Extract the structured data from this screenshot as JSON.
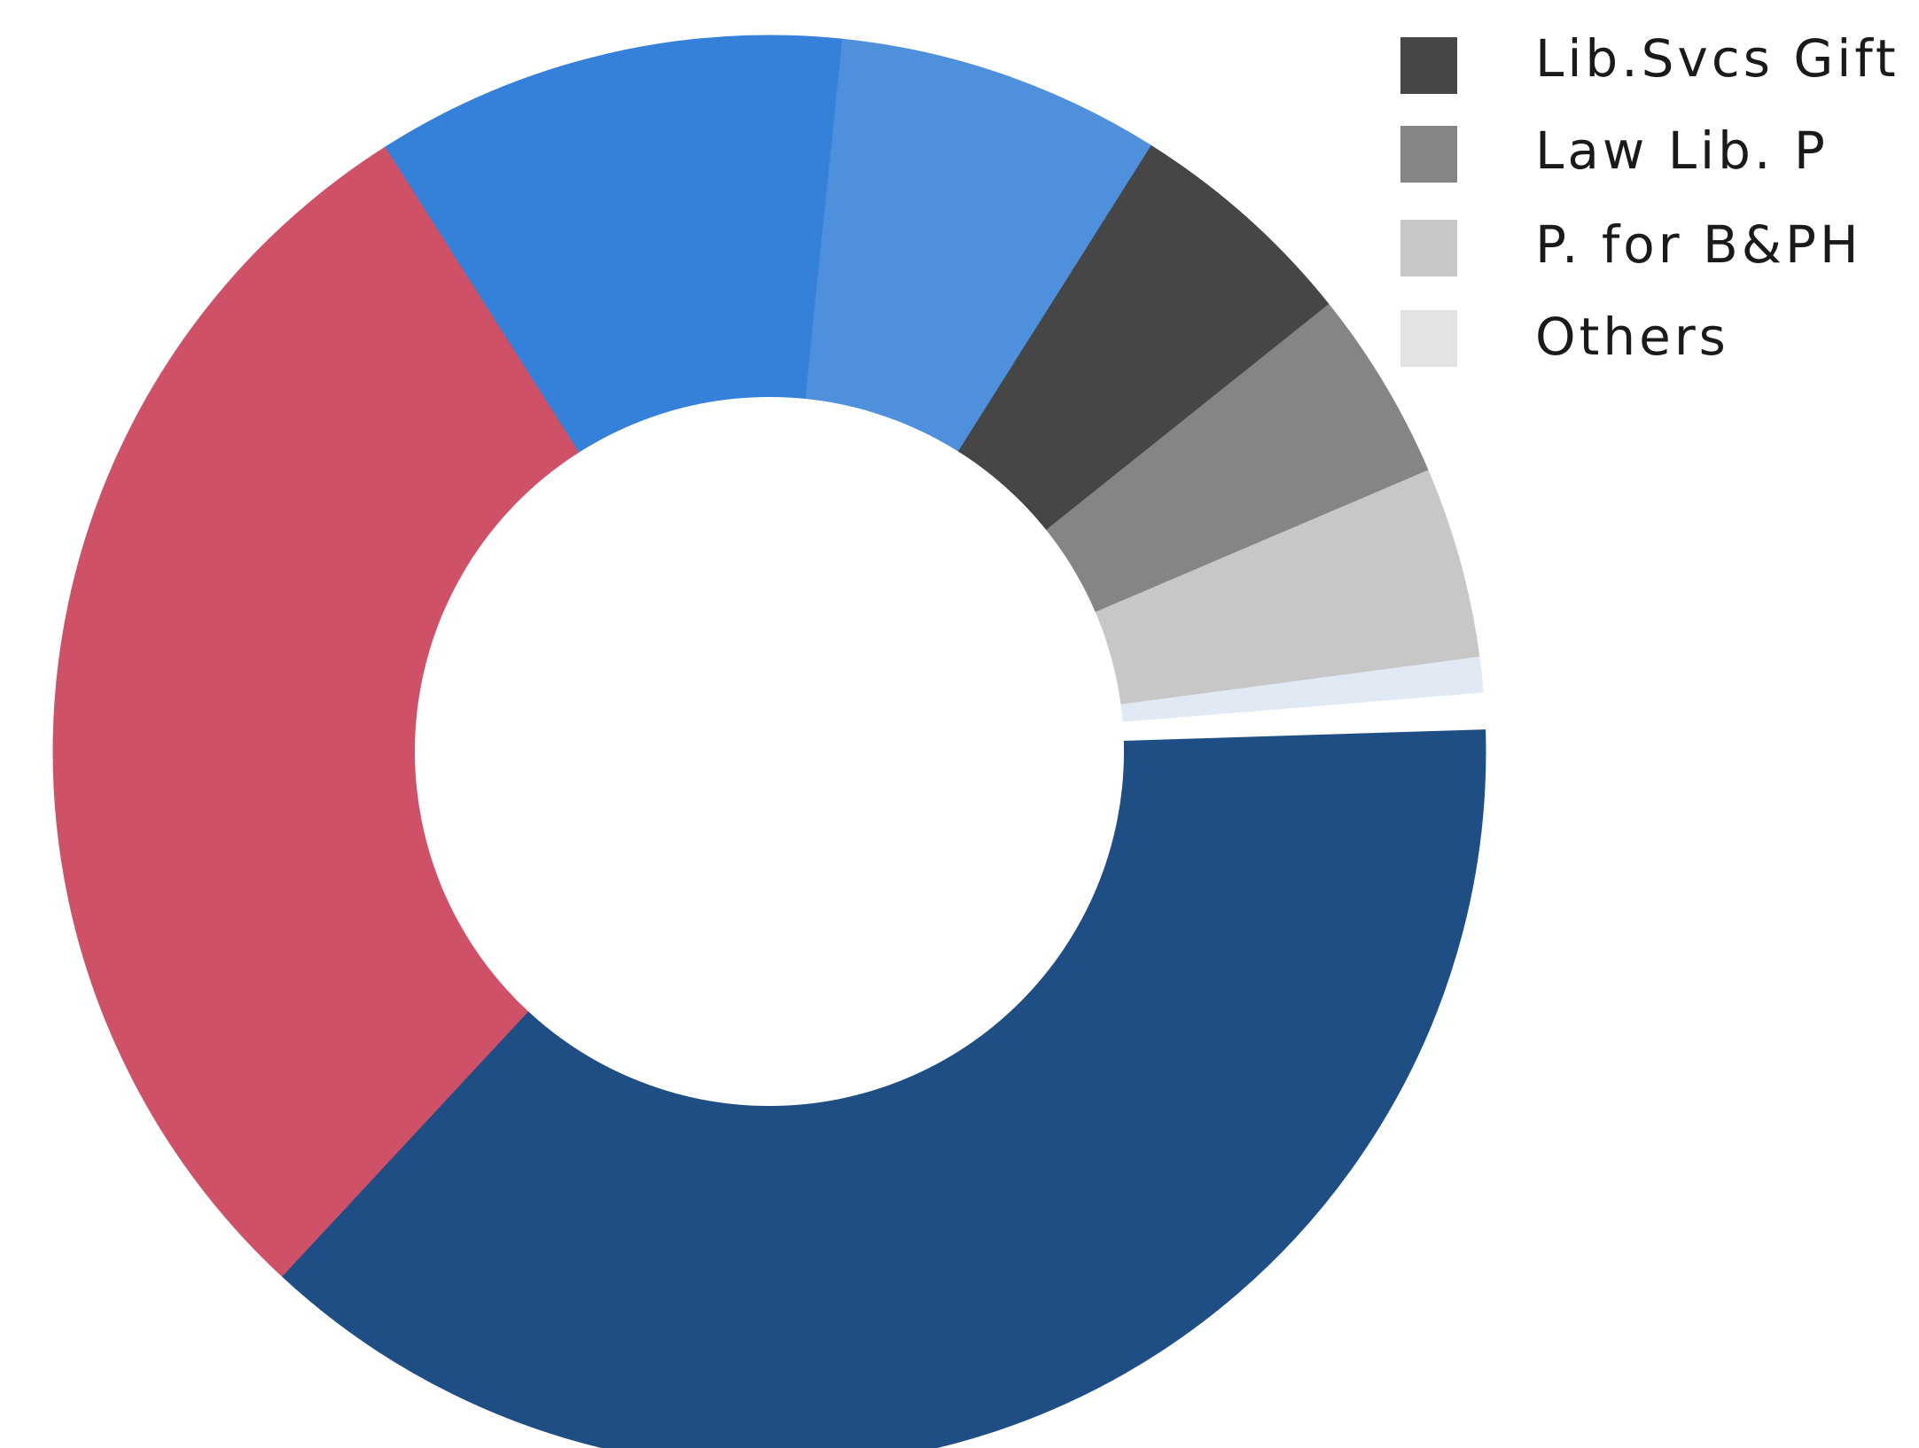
{
  "chart_data": {
    "type": "pie",
    "donut": true,
    "start_angle_deg": -1.8,
    "direction": "clockwise",
    "slices": [
      {
        "label": "",
        "value": 37.3,
        "color": "#1f4e85"
      },
      {
        "label": "",
        "value": 29.0,
        "color": "#cf5168"
      },
      {
        "label": "",
        "value": 10.6,
        "color": "#3580d8"
      },
      {
        "label": "",
        "value": 7.3,
        "color": "#4f90dc"
      },
      {
        "label": "Lib.Svcs Gift",
        "value": 5.3,
        "color": "#464646"
      },
      {
        "label": "Law Lib. P",
        "value": 4.3,
        "color": "#858585"
      },
      {
        "label": "P. for B&PH",
        "value": 4.3,
        "color": "#c7c7c7"
      },
      {
        "label": "",
        "value": 0.8,
        "color": "#e1eaf4"
      },
      {
        "label": "",
        "value": 0.8,
        "color": "#ffffff"
      }
    ],
    "legend": {
      "placement": "top-right",
      "entries": [
        {
          "label": "Lib.Svcs Gift",
          "color": "#464646"
        },
        {
          "label": "Law Lib. P",
          "color": "#858585"
        },
        {
          "label": "P. for B&PH",
          "color": "#c7c7c7"
        },
        {
          "label": "Others",
          "color": "#e3e3e3"
        }
      ]
    }
  }
}
